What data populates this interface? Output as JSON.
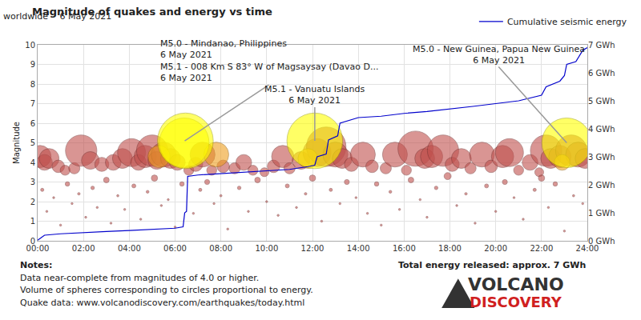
{
  "chart_data": {
    "type": "scatter",
    "title": "Magnitude of quakes and energy vs time",
    "subtitle": "worldwide -  6 May 2021",
    "y_label": "Magnitude",
    "xlim": [
      0,
      24
    ],
    "xticks": [
      {
        "value": 0,
        "label": "00:00"
      },
      {
        "value": 2,
        "label": "02:00"
      },
      {
        "value": 4,
        "label": "04:00"
      },
      {
        "value": 6,
        "label": "06:00"
      },
      {
        "value": 8,
        "label": "08:00"
      },
      {
        "value": 10,
        "label": "10:00"
      },
      {
        "value": 12,
        "label": "12:00"
      },
      {
        "value": 14,
        "label": "14:00"
      },
      {
        "value": 16,
        "label": "16:00"
      },
      {
        "value": 18,
        "label": "18:00"
      },
      {
        "value": 20,
        "label": "20:00"
      },
      {
        "value": 22,
        "label": "22:00"
      },
      {
        "value": 24,
        "label": "24:00"
      }
    ],
    "ylim": [
      0,
      10
    ],
    "yticks": [
      0,
      1,
      2,
      3,
      4,
      5,
      6,
      7,
      8,
      9,
      10
    ],
    "y2lim": [
      0,
      7
    ],
    "y2ticks": [
      {
        "value": 0,
        "label": "0 GWh"
      },
      {
        "value": 1,
        "label": "1 GWh"
      },
      {
        "value": 2,
        "label": "2 GWh"
      },
      {
        "value": 3,
        "label": "3 GWh"
      },
      {
        "value": 4,
        "label": "4 GWh"
      },
      {
        "value": 5,
        "label": "5 GWh"
      },
      {
        "value": 6,
        "label": "6 GWh"
      },
      {
        "value": 7,
        "label": "7 GWh"
      }
    ],
    "grid": true,
    "legend": "top right",
    "series": [
      {
        "type": "scatter",
        "marker": "circle",
        "color": "#c0504d",
        "x": [
          0.1,
          0.3,
          0.5,
          0.9,
          1.2,
          1.6,
          1.9,
          2.3,
          2.8,
          3.3,
          3.7,
          4.1,
          4.4,
          4.7,
          5.0,
          5.2,
          5.5,
          5.8,
          6.1,
          6.6,
          6.9,
          7.2,
          7.6,
          8.1,
          8.6,
          9.0,
          9.4,
          9.9,
          10.3,
          10.7,
          11.0,
          11.5,
          12.2,
          12.6,
          13.0,
          13.3,
          13.7,
          14.2,
          14.6,
          15.2,
          15.6,
          16.1,
          16.5,
          16.9,
          17.2,
          17.7,
          18.1,
          18.5,
          18.9,
          19.4,
          19.8,
          20.3,
          20.6,
          21.0,
          21.5,
          21.9,
          22.2,
          22.4,
          22.8,
          23.3,
          23.6,
          23.9,
          0.2,
          0.4,
          0.7,
          1.0,
          1.3,
          1.5,
          1.8,
          2.1,
          2.4,
          2.6,
          3.0,
          3.2,
          3.5,
          3.8,
          4.2,
          4.5,
          4.8,
          5.1,
          5.4,
          5.7,
          6.0,
          6.3,
          6.8,
          7.1,
          7.4,
          7.7,
          8.0,
          8.3,
          8.8,
          9.2,
          9.6,
          10.0,
          10.5,
          10.9,
          11.3,
          11.7,
          12.0,
          12.4,
          12.8,
          13.2,
          13.5,
          13.9,
          14.4,
          14.8,
          15.0,
          15.4,
          15.8,
          16.3,
          16.7,
          17.0,
          17.4,
          17.9,
          18.3,
          18.7,
          19.1,
          19.6,
          20.0,
          20.4,
          20.8,
          21.2,
          21.7,
          22.0,
          22.3,
          22.6,
          23.0,
          23.4,
          23.8
        ],
        "values": [
          4.3,
          4.0,
          4.2,
          3.8,
          3.6,
          3.7,
          4.6,
          4.1,
          3.9,
          4.0,
          4.2,
          4.5,
          4.0,
          4.3,
          4.6,
          4.1,
          4.4,
          4.2,
          4.0,
          3.6,
          3.9,
          4.4,
          3.6,
          3.8,
          3.7,
          4.0,
          3.6,
          3.5,
          3.8,
          4.3,
          3.7,
          4.1,
          4.5,
          4.8,
          4.4,
          4.2,
          3.9,
          4.4,
          3.8,
          3.7,
          4.4,
          3.6,
          4.7,
          4.2,
          4.3,
          4.6,
          3.9,
          4.2,
          3.7,
          4.4,
          3.8,
          4.3,
          4.5,
          3.6,
          4.0,
          3.5,
          4.6,
          4.2,
          4.3,
          4.6,
          4.4,
          4.2,
          2.6,
          1.5,
          2.2,
          0.8,
          2.9,
          1.9,
          2.4,
          1.2,
          2.7,
          1.7,
          3.1,
          0.9,
          2.3,
          1.6,
          2.8,
          1.1,
          2.5,
          3.2,
          1.8,
          2.1,
          0.7,
          2.9,
          1.4,
          2.6,
          3.0,
          1.9,
          2.3,
          0.6,
          2.7,
          1.5,
          3.1,
          2.0,
          1.3,
          2.8,
          1.7,
          2.4,
          3.2,
          1.0,
          2.6,
          1.9,
          3.0,
          2.2,
          1.4,
          2.9,
          0.8,
          2.5,
          1.6,
          3.1,
          2.1,
          1.2,
          2.7,
          3.3,
          1.8,
          2.4,
          0.9,
          2.8,
          1.5,
          3.0,
          2.2,
          1.1,
          2.6,
          3.2,
          1.7,
          2.9,
          0.5,
          2.3,
          1.9
        ]
      },
      {
        "type": "scatter",
        "marker": "circle",
        "color": "#f0a020",
        "x": [
          5.3,
          7.8,
          11.8,
          22.9
        ],
        "values": [
          4.3,
          4.4,
          4.2,
          4.0
        ]
      },
      {
        "type": "scatter",
        "marker": "circle",
        "color": "#ffff00",
        "x": [
          6.4,
          6.45,
          12.1,
          23.1
        ],
        "values": [
          5.0,
          5.1,
          5.1,
          5.0
        ]
      },
      {
        "name": "Cumulative seismic energy",
        "type": "line",
        "axis": "y2",
        "color": "#0000cc",
        "line_style": "solid",
        "x": [
          0,
          0.3,
          1,
          2,
          3,
          4,
          5,
          6,
          6.35,
          6.42,
          6.5,
          6.55,
          7,
          8,
          9,
          10,
          11,
          11.8,
          12.1,
          12.2,
          12.6,
          12.7,
          13.1,
          13.2,
          13.6,
          14,
          15,
          16,
          17,
          18,
          19,
          20,
          21,
          22,
          22.2,
          22.8,
          23.0,
          23.1,
          23.5,
          23.8,
          24
        ],
        "values": [
          0.02,
          0.2,
          0.25,
          0.3,
          0.33,
          0.37,
          0.42,
          0.45,
          0.5,
          1.0,
          1.05,
          2.3,
          2.35,
          2.4,
          2.45,
          2.48,
          2.55,
          2.65,
          2.7,
          3.0,
          3.1,
          3.6,
          3.75,
          4.2,
          4.3,
          4.4,
          4.45,
          4.55,
          4.62,
          4.7,
          4.8,
          4.9,
          5.0,
          5.2,
          5.5,
          5.7,
          5.9,
          6.3,
          6.4,
          6.8,
          6.9
        ]
      }
    ],
    "annotations": [
      {
        "lines": [
          "M5.0 - Mindanao, Philippines",
          "6 May 2021",
          "M5.1 - 008 Km S 83° W of Magsaysay (Davao D...",
          "6 May 2021"
        ],
        "x": 6.42,
        "y": 5.1
      },
      {
        "lines": [
          "M5.1 - Vanuatu Islands",
          "6 May 2021"
        ],
        "x": 12.1,
        "y": 5.1
      },
      {
        "lines": [
          "M5.0 - New Guinea, Papua New Guinea",
          "6 May 2021"
        ],
        "x": 23.1,
        "y": 5.0
      }
    ],
    "notes_title": "Notes:",
    "notes": [
      "Data near-complete from magnitudes of 4.0 or higher.",
      "Volume of spheres corresponding to circles proportional to energy.",
      "Quake data: www.volcanodiscovery.com/earthquakes/today.html"
    ],
    "total": "Total energy released: approx. 7 GWh",
    "logo": [
      "VOLCANO",
      "DISCOVERY"
    ]
  }
}
